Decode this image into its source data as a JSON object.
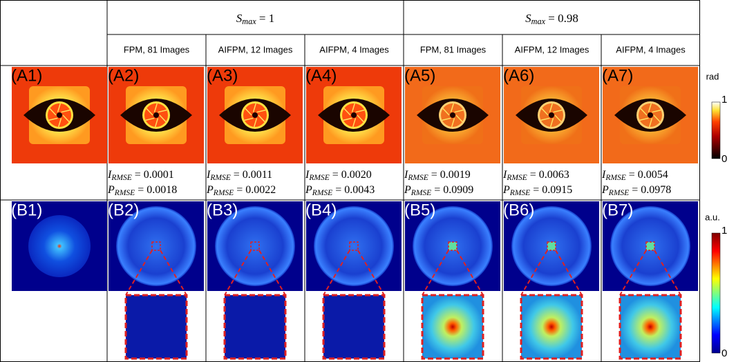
{
  "header": {
    "groups": [
      {
        "symbol": "S",
        "subscript": "max",
        "rest": " = 1"
      },
      {
        "symbol": "S",
        "subscript": "max",
        "rest": " = 0.98"
      }
    ],
    "columns": [
      "FPM, 81 Images",
      "AIFPM, 12 Images",
      "AIFPM, 4 Images",
      "FPM, 81 Images",
      "AIFPM, 12 Images",
      "AIFPM, 4 Images"
    ]
  },
  "row_a": {
    "labels": [
      "(A1)",
      "(A2)",
      "(A3)",
      "(A4)",
      "(A5)",
      "(A6)",
      "(A7)"
    ],
    "metrics": [
      {
        "i": {
          "symbol": "I",
          "subscript": "RMSE",
          "rest": " = 0.0001"
        },
        "p": {
          "symbol": "P",
          "subscript": "RMSE",
          "rest": " = 0.0018"
        }
      },
      {
        "i": {
          "symbol": "I",
          "subscript": "RMSE",
          "rest": " = 0.0011"
        },
        "p": {
          "symbol": "P",
          "subscript": "RMSE",
          "rest": " = 0.0022"
        }
      },
      {
        "i": {
          "symbol": "I",
          "subscript": "RMSE",
          "rest": " = 0.0020"
        },
        "p": {
          "symbol": "P",
          "subscript": "RMSE",
          "rest": " = 0.0043"
        }
      },
      {
        "i": {
          "symbol": "I",
          "subscript": "RMSE",
          "rest": " = 0.0019"
        },
        "p": {
          "symbol": "P",
          "subscript": "RMSE",
          "rest": " = 0.0909"
        }
      },
      {
        "i": {
          "symbol": "I",
          "subscript": "RMSE",
          "rest": " = 0.0063"
        },
        "p": {
          "symbol": "P",
          "subscript": "RMSE",
          "rest": " = 0.0915"
        }
      },
      {
        "i": {
          "symbol": "I",
          "subscript": "RMSE",
          "rest": " = 0.0054"
        },
        "p": {
          "symbol": "P",
          "subscript": "RMSE",
          "rest": " = 0.0978"
        }
      }
    ]
  },
  "row_b": {
    "labels": [
      "(B1)",
      "(B2)",
      "(B3)",
      "(B4)",
      "(B5)",
      "(B6)",
      "(B7)"
    ]
  },
  "colorbars": [
    {
      "unit": "rad",
      "max": "1",
      "min": "0"
    },
    {
      "unit": "a.u.",
      "max": "1",
      "min": "0"
    }
  ]
}
